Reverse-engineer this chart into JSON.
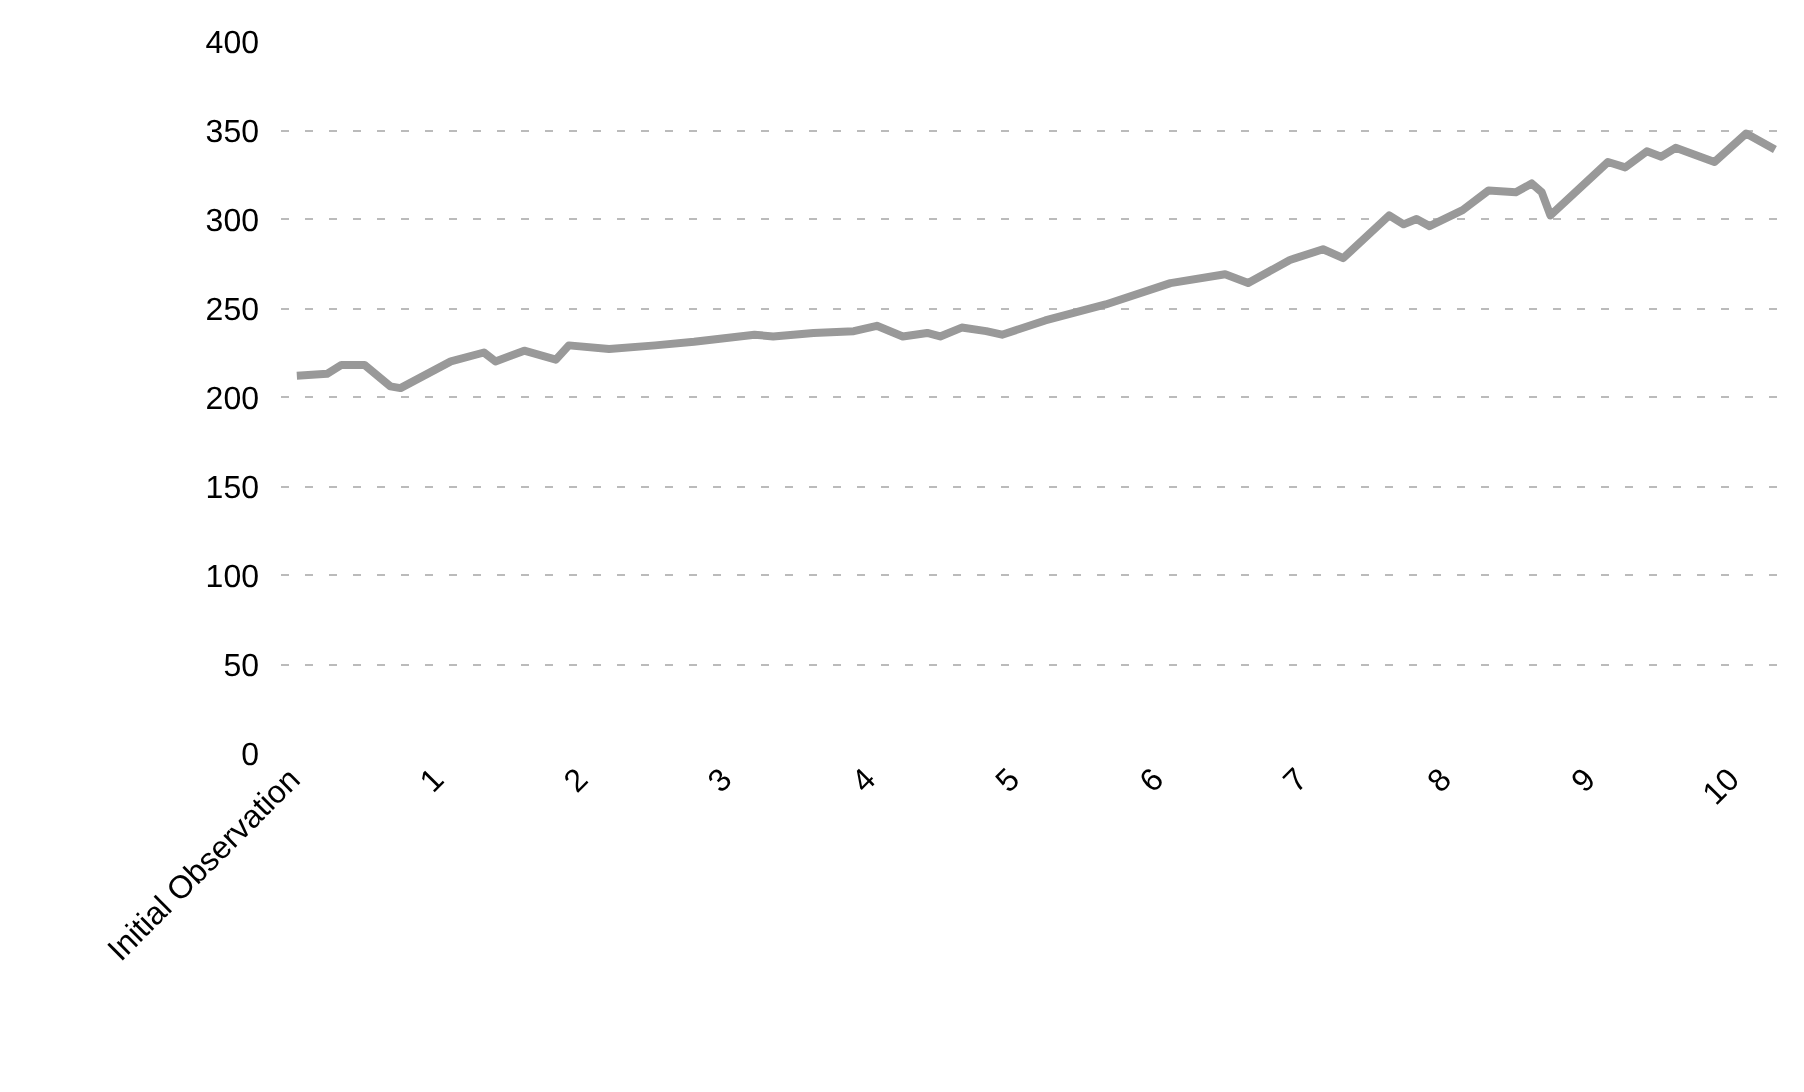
{
  "chart_data": {
    "type": "line",
    "xlim": [
      -0.1,
      10.35
    ],
    "xticks": [
      {
        "value": 0,
        "label": "Initial Observation"
      },
      1,
      2,
      3,
      4,
      5,
      6,
      7,
      8,
      9,
      10
    ],
    "ylim": [
      0,
      400
    ],
    "yticks": [
      0,
      50,
      100,
      150,
      200,
      250,
      300,
      350,
      400
    ],
    "grid": "y",
    "marker": "none",
    "line_style": "solid",
    "series": [
      {
        "color": "#999999",
        "x": [
          0.01,
          0.22,
          0.32,
          0.48,
          0.66,
          0.73,
          1.08,
          1.31,
          1.39,
          1.59,
          1.81,
          1.9,
          2.18,
          2.5,
          2.77,
          3.19,
          3.32,
          3.6,
          3.88,
          4.04,
          4.22,
          4.39,
          4.48,
          4.63,
          4.8,
          4.91,
          5.21,
          5.63,
          6.08,
          6.46,
          6.62,
          6.91,
          7.14,
          7.28,
          7.6,
          7.7,
          7.79,
          7.88,
          8.11,
          8.29,
          8.48,
          8.59,
          8.66,
          8.72,
          9.12,
          9.24,
          9.39,
          9.49,
          9.59,
          9.86,
          10.08,
          10.28
        ],
        "values": [
          212,
          213,
          218,
          218,
          206,
          205,
          220,
          225,
          220,
          226,
          221,
          229,
          227,
          229,
          231,
          235,
          234,
          236,
          237,
          240,
          234,
          236,
          234,
          239,
          237,
          235,
          243,
          252,
          264,
          269,
          264,
          277,
          283,
          278,
          302,
          297,
          300,
          296,
          305,
          316,
          315,
          320,
          315,
          302,
          332,
          329,
          338,
          335,
          340,
          332,
          348,
          339
        ]
      }
    ]
  }
}
